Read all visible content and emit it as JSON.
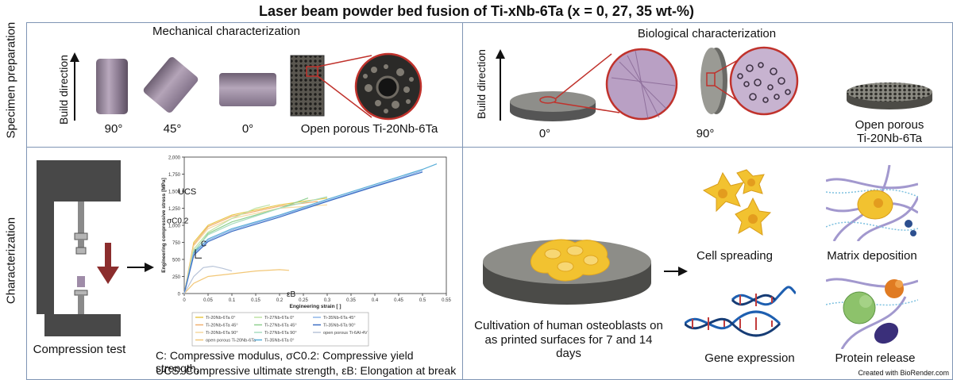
{
  "title": "Laser beam powder bed fusion of Ti-xNb-6Ta (x = 0, 27, 35 wt-%)",
  "rows": {
    "top": "Specimen preparation",
    "bottom": "Characterization"
  },
  "mechanical": {
    "heading": "Mechanical characterization",
    "build_direction": "Build direction",
    "angles": [
      "90°",
      "45°",
      "0°"
    ],
    "porous_label": "Open porous Ti-20Nb-6Ta"
  },
  "biological": {
    "heading": "Biological characterization",
    "build_direction": "Build direction",
    "angles": [
      "0°",
      "90°"
    ],
    "porous_label_1": "Open porous",
    "porous_label_2": "Ti-20Nb-6Ta"
  },
  "compression": {
    "label": "Compression test",
    "caption_1": "C: Compressive modulus, σC0.2: Compressive yield strength,",
    "caption_2": "UCS: Compressive ultimate strength, εB: Elongation at break"
  },
  "chart_data": {
    "type": "line",
    "xlabel": "Engineering strain [ ]",
    "ylabel": "Engineering compressive stress [MPa]",
    "xlim": [
      0,
      0.55
    ],
    "ylim": [
      0,
      2000
    ],
    "xticks": [
      "0",
      "0.05",
      "0.1",
      "0.15",
      "0.2",
      "0.25",
      "0.3",
      "0.35",
      "0.4",
      "0.45",
      "0.5",
      "0.55"
    ],
    "yticks": [
      "0",
      "250",
      "500",
      "750",
      "1,000",
      "1,250",
      "1,500",
      "1,750",
      "2,000"
    ],
    "annotations": [
      "UCS",
      "σC0.2",
      "C",
      "εB"
    ],
    "legend_position": "bottom",
    "series": [
      {
        "name": "Ti-20Nb-6Ta 0°",
        "color": "#e8c84a",
        "x": [
          0,
          0.02,
          0.05,
          0.1,
          0.2,
          0.3
        ],
        "y": [
          0,
          750,
          1000,
          1150,
          1300,
          1400
        ]
      },
      {
        "name": "Ti-20Nb-6Ta 45°",
        "color": "#f0b070",
        "x": [
          0,
          0.02,
          0.05,
          0.1,
          0.2,
          0.28
        ],
        "y": [
          0,
          720,
          980,
          1130,
          1280,
          1350
        ]
      },
      {
        "name": "Ti-20Nb-6Ta 90°",
        "color": "#f6d9a0",
        "x": [
          0,
          0.02,
          0.05,
          0.1,
          0.2,
          0.3
        ],
        "y": [
          0,
          700,
          950,
          1100,
          1250,
          1300
        ]
      },
      {
        "name": "open porous Ti-20Nb-6Ta",
        "color": "#f2c777",
        "x": [
          0,
          0.02,
          0.05,
          0.1,
          0.15,
          0.2,
          0.22
        ],
        "y": [
          0,
          150,
          250,
          290,
          330,
          350,
          340
        ]
      },
      {
        "name": "Ti-27Nb-6Ta 0°",
        "color": "#bfe3a6",
        "x": [
          0,
          0.02,
          0.05,
          0.1,
          0.15,
          0.18
        ],
        "y": [
          0,
          650,
          900,
          1100,
          1250,
          1300
        ]
      },
      {
        "name": "Ti-27Nb-6Ta 45°",
        "color": "#8fd08f",
        "x": [
          0,
          0.02,
          0.05,
          0.1,
          0.2,
          0.26
        ],
        "y": [
          0,
          600,
          880,
          1050,
          1250,
          1400
        ]
      },
      {
        "name": "Ti-27Nb-6Ta 90°",
        "color": "#a8dcc0",
        "x": [
          0,
          0.02,
          0.05,
          0.1,
          0.2,
          0.3
        ],
        "y": [
          0,
          620,
          860,
          1020,
          1250,
          1420
        ]
      },
      {
        "name": "Ti-35Nb-6Ta 0°",
        "color": "#5aaed8",
        "x": [
          0,
          0.02,
          0.05,
          0.1,
          0.2,
          0.3,
          0.4,
          0.5,
          0.53
        ],
        "y": [
          0,
          600,
          800,
          950,
          1150,
          1380,
          1600,
          1820,
          1900
        ]
      },
      {
        "name": "Ti-35Nb-6Ta 45°",
        "color": "#8fb5e8",
        "x": [
          0,
          0.02,
          0.05,
          0.1,
          0.2,
          0.3,
          0.4,
          0.5
        ],
        "y": [
          0,
          580,
          780,
          930,
          1140,
          1360,
          1580,
          1800
        ]
      },
      {
        "name": "Ti-35Nb-6Ta 90°",
        "color": "#3e6fc4",
        "x": [
          0,
          0.02,
          0.05,
          0.1,
          0.2,
          0.3,
          0.4,
          0.5
        ],
        "y": [
          0,
          560,
          760,
          910,
          1120,
          1350,
          1570,
          1780
        ]
      },
      {
        "name": "open porous Ti-6Al-4V",
        "color": "#b8c4d8",
        "x": [
          0,
          0.02,
          0.04,
          0.06,
          0.08,
          0.1
        ],
        "y": [
          0,
          250,
          380,
          400,
          370,
          330
        ]
      }
    ]
  },
  "cultivation": {
    "label_1": "Cultivation of human osteoblasts on",
    "label_2": "as printed surfaces for 7 and 14 days"
  },
  "outcomes": [
    "Cell spreading",
    "Matrix deposition",
    "Gene expression",
    "Protein release"
  ],
  "credit": "Created with BioRender.com",
  "colors": {
    "border": "#7f95b4",
    "arrow_red": "#8b2d2d",
    "cell_yellow": "#f2c230",
    "dna_blue": "#1e5fb0",
    "zoom_red": "#c0322c"
  },
  "icons": [
    "up-arrow-icon",
    "right-arrow-icon",
    "down-arrow-icon",
    "cell-icon",
    "dna-icon",
    "protein-icon",
    "fiber-icon"
  ]
}
